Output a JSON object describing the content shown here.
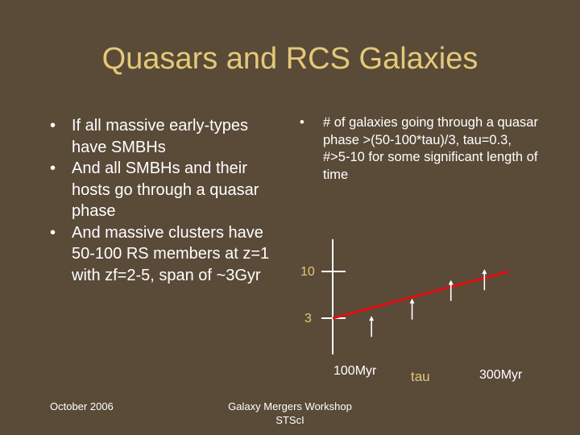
{
  "slide": {
    "title": "Quasars and RCS Galaxies",
    "bullet_glyph": "•",
    "left_bullets": [
      "If all massive early-types have SMBHs",
      "And all SMBHs and their hosts go through a quasar phase",
      "And massive clusters have 50-100 RS members at z=1 with zf=2-5, span of ~3Gyr"
    ],
    "right_bullets": [
      "# of galaxies going through a quasar phase >(50-100*tau)/3, tau=0.3, #>5-10 for some significant length of time"
    ],
    "footer": {
      "date": "October 2006",
      "event_line1": "Galaxy Mergers Workshop",
      "event_line2": "STScI"
    }
  },
  "chart_data": {
    "type": "line",
    "y_ticks": [
      "10",
      "3"
    ],
    "x_tick_labels": [
      "100Myr",
      "300Myr"
    ],
    "x_axis_label": "tau",
    "series": [
      {
        "x": [
          0,
          1
        ],
        "y": [
          3,
          10
        ],
        "color": "#e01010"
      }
    ],
    "arrow_markers": [
      {
        "x": 0.22,
        "y_level": 0.05,
        "length": 0.45
      },
      {
        "x": 0.45,
        "y_level": 0.42,
        "length": 0.45
      },
      {
        "x": 0.67,
        "y_level": 0.82,
        "length": 0.45
      },
      {
        "x": 0.86,
        "y_level": 1.05,
        "length": 0.45
      }
    ],
    "colors": {
      "axis": "#ffffff",
      "tick_labels": "#e4c978",
      "line": "#e01010"
    }
  }
}
